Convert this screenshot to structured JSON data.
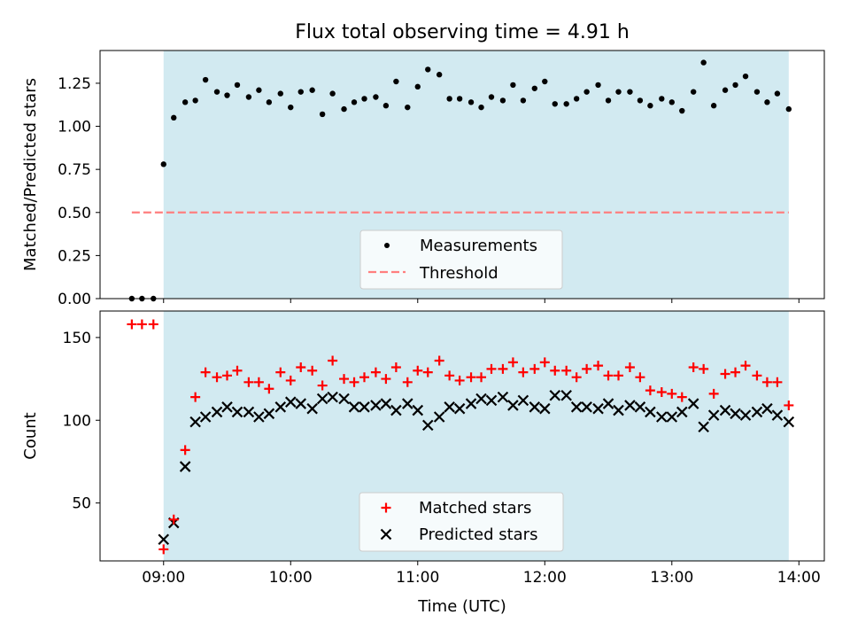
{
  "title": "Flux total observing time = 4.91 h",
  "colors": {
    "shade": "#add8e6",
    "threshold": "#ff7f7f",
    "matched": "#ff0000",
    "predicted": "#000000",
    "measurement": "#000000"
  },
  "chart_data": [
    {
      "type": "scatter",
      "ylabel": "Matched/Predicted stars",
      "ylim": [
        0,
        1.44
      ],
      "yticks": [
        0.0,
        0.25,
        0.5,
        0.75,
        1.0,
        1.25
      ],
      "ytick_labels": [
        "0.00",
        "0.25",
        "0.50",
        "0.75",
        "1.00",
        "1.25"
      ],
      "shaded_span_hours": [
        9.0,
        13.92
      ],
      "threshold": {
        "label": "Threshold",
        "value": 0.5,
        "x_range_hours": [
          8.75,
          13.92
        ]
      },
      "legend": {
        "position": "lower center",
        "entries": [
          "Measurements",
          "Threshold"
        ]
      },
      "series": [
        {
          "name": "Measurements",
          "x_hours": [
            8.75,
            8.83,
            8.92,
            9.0,
            9.08,
            9.17,
            9.25,
            9.33,
            9.42,
            9.5,
            9.58,
            9.67,
            9.75,
            9.83,
            9.92,
            10.0,
            10.08,
            10.17,
            10.25,
            10.33,
            10.42,
            10.5,
            10.58,
            10.67,
            10.75,
            10.83,
            10.92,
            11.0,
            11.08,
            11.17,
            11.25,
            11.33,
            11.42,
            11.5,
            11.58,
            11.67,
            11.75,
            11.83,
            11.92,
            12.0,
            12.08,
            12.17,
            12.25,
            12.33,
            12.42,
            12.5,
            12.58,
            12.67,
            12.75,
            12.83,
            12.92,
            13.0,
            13.08,
            13.17,
            13.25,
            13.33,
            13.42,
            13.5,
            13.58,
            13.67,
            13.75,
            13.83,
            13.92
          ],
          "y": [
            0.0,
            0.0,
            0.0,
            0.78,
            1.05,
            1.14,
            1.15,
            1.27,
            1.2,
            1.18,
            1.24,
            1.17,
            1.21,
            1.14,
            1.19,
            1.11,
            1.2,
            1.21,
            1.07,
            1.19,
            1.1,
            1.14,
            1.16,
            1.17,
            1.12,
            1.26,
            1.11,
            1.23,
            1.33,
            1.3,
            1.16,
            1.16,
            1.14,
            1.11,
            1.17,
            1.15,
            1.24,
            1.15,
            1.22,
            1.26,
            1.13,
            1.13,
            1.16,
            1.2,
            1.24,
            1.15,
            1.2,
            1.2,
            1.15,
            1.12,
            1.16,
            1.14,
            1.09,
            1.2,
            1.37,
            1.12,
            1.21,
            1.24,
            1.29,
            1.2,
            1.14,
            1.19,
            1.1
          ]
        }
      ]
    },
    {
      "type": "scatter",
      "xlabel": "Time (UTC)",
      "ylabel": "Count",
      "xlim_hours": [
        8.5,
        14.2
      ],
      "ylim": [
        15,
        166
      ],
      "xticks_hours": [
        9,
        10,
        11,
        12,
        13,
        14
      ],
      "xtick_labels": [
        "09:00",
        "10:00",
        "11:00",
        "12:00",
        "13:00",
        "14:00"
      ],
      "yticks": [
        50,
        100,
        150
      ],
      "ytick_labels": [
        "50",
        "100",
        "150"
      ],
      "shaded_span_hours": [
        9.0,
        13.92
      ],
      "legend": {
        "position": "lower center",
        "entries": [
          "Matched stars",
          "Predicted stars"
        ]
      },
      "series": [
        {
          "name": "Matched stars",
          "marker": "+",
          "x_hours": [
            8.75,
            8.83,
            8.92,
            9.0,
            9.08,
            9.17,
            9.25,
            9.33,
            9.42,
            9.5,
            9.58,
            9.67,
            9.75,
            9.83,
            9.92,
            10.0,
            10.08,
            10.17,
            10.25,
            10.33,
            10.42,
            10.5,
            10.58,
            10.67,
            10.75,
            10.83,
            10.92,
            11.0,
            11.08,
            11.17,
            11.25,
            11.33,
            11.42,
            11.5,
            11.58,
            11.67,
            11.75,
            11.83,
            11.92,
            12.0,
            12.08,
            12.17,
            12.25,
            12.33,
            12.42,
            12.5,
            12.58,
            12.67,
            12.75,
            12.83,
            12.92,
            13.0,
            13.08,
            13.17,
            13.25,
            13.33,
            13.42,
            13.5,
            13.58,
            13.67,
            13.75,
            13.83,
            13.92
          ],
          "y": [
            158,
            158,
            158,
            22,
            40,
            82,
            114,
            129,
            126,
            127,
            130,
            123,
            123,
            119,
            129,
            124,
            132,
            130,
            121,
            136,
            125,
            123,
            126,
            129,
            125,
            132,
            123,
            130,
            129,
            136,
            127,
            124,
            126,
            126,
            131,
            131,
            135,
            129,
            131,
            135,
            130,
            130,
            126,
            131,
            133,
            127,
            127,
            132,
            126,
            118,
            117,
            116,
            114,
            132,
            131,
            116,
            128,
            129,
            133,
            127,
            123,
            123,
            109
          ]
        },
        {
          "name": "Predicted stars",
          "marker": "x",
          "x_hours": [
            9.0,
            9.08,
            9.17,
            9.25,
            9.33,
            9.42,
            9.5,
            9.58,
            9.67,
            9.75,
            9.83,
            9.92,
            10.0,
            10.08,
            10.17,
            10.25,
            10.33,
            10.42,
            10.5,
            10.58,
            10.67,
            10.75,
            10.83,
            10.92,
            11.0,
            11.08,
            11.17,
            11.25,
            11.33,
            11.42,
            11.5,
            11.58,
            11.67,
            11.75,
            11.83,
            11.92,
            12.0,
            12.08,
            12.17,
            12.25,
            12.33,
            12.42,
            12.5,
            12.58,
            12.67,
            12.75,
            12.83,
            12.92,
            13.0,
            13.08,
            13.17,
            13.25,
            13.33,
            13.42,
            13.5,
            13.58,
            13.67,
            13.75,
            13.83,
            13.92
          ],
          "y": [
            28,
            38,
            72,
            99,
            102,
            105,
            108,
            105,
            105,
            102,
            104,
            108,
            111,
            110,
            107,
            113,
            114,
            113,
            108,
            108,
            109,
            110,
            106,
            110,
            106,
            97,
            102,
            108,
            107,
            110,
            113,
            112,
            114,
            109,
            112,
            108,
            107,
            115,
            115,
            108,
            108,
            107,
            110,
            106,
            109,
            108,
            105,
            102,
            102,
            105,
            110,
            96,
            103,
            106,
            104,
            103,
            105,
            107,
            103,
            99
          ]
        }
      ]
    }
  ]
}
